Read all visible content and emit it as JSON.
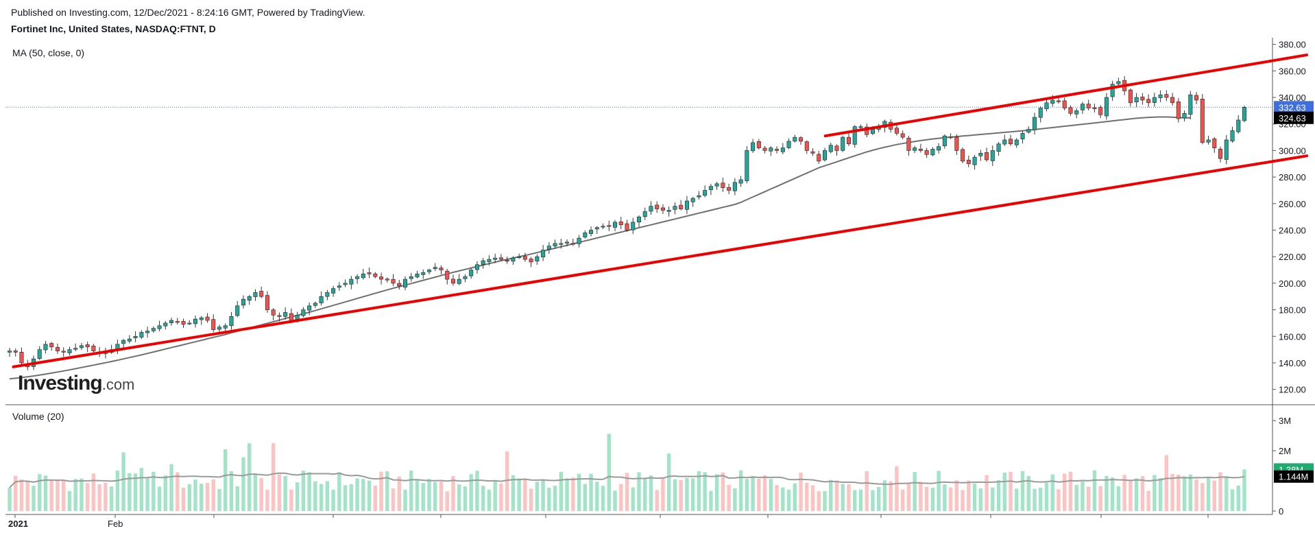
{
  "header": {
    "published": "Published on Investing.com, 12/Dec/2021 - 8:24:16 GMT, Powered by TradingView.",
    "title": "Fortinet Inc, United States, NASDAQ:FTNT, D"
  },
  "legends": {
    "ma": "MA (50, close, 0)",
    "volume": "Volume (20)"
  },
  "logo": {
    "brand": "Investing",
    "suffix": ".com"
  },
  "colors": {
    "up": "#26a69a",
    "down": "#ef5350",
    "up_vol": "#a3e4c9",
    "down_vol": "#fbc4c2",
    "ma": "#6f6f6f",
    "trend": "#ee0000",
    "last_price": "#3f6fdd",
    "ma_label": "#000000"
  },
  "chart_data": [
    {
      "type": "candlestick",
      "ylim": [
        110,
        385
      ],
      "ytick_labels": [
        "120.00",
        "140.00",
        "160.00",
        "180.00",
        "200.00",
        "220.00",
        "240.00",
        "260.00",
        "280.00",
        "300.00",
        "320.00",
        "340.00",
        "360.00",
        "380.00"
      ],
      "xtick_labels": [
        "2021",
        "Feb"
      ],
      "last_price": 332.63,
      "last_price_label": "332.63",
      "ma_value": 324.63,
      "ma_label": "324.63",
      "closes": [
        149,
        148,
        140,
        137,
        143,
        150,
        154,
        152,
        149,
        148,
        150,
        151,
        153,
        152,
        149,
        148,
        147,
        150,
        154,
        157,
        158,
        160,
        163,
        164,
        166,
        168,
        170,
        172,
        171,
        169,
        170,
        173,
        174,
        172,
        165,
        167,
        168,
        175,
        183,
        188,
        190,
        193,
        190,
        180,
        176,
        175,
        178,
        172,
        176,
        180,
        183,
        185,
        190,
        193,
        196,
        198,
        200,
        203,
        205,
        207,
        207,
        205,
        203,
        203,
        200,
        198,
        203,
        205,
        207,
        208,
        210,
        212,
        210,
        203,
        200,
        203,
        205,
        210,
        214,
        217,
        218,
        219,
        218,
        217,
        219,
        220,
        218,
        216,
        220,
        225,
        228,
        230,
        230,
        231,
        230,
        234,
        238,
        240,
        242,
        243,
        243,
        246,
        244,
        240,
        246,
        250,
        254,
        258,
        256,
        255,
        255,
        258,
        256,
        262,
        264,
        266,
        270,
        273,
        275,
        272,
        270,
        276,
        278,
        300,
        306,
        302,
        300,
        302,
        300,
        302,
        307,
        310,
        307,
        300,
        298,
        292,
        300,
        304,
        300,
        310,
        305,
        318,
        318,
        312,
        316,
        318,
        322,
        316,
        313,
        310,
        300,
        302,
        300,
        297,
        301,
        303,
        311,
        310,
        300,
        292,
        290,
        295,
        298,
        293,
        300,
        305,
        308,
        305,
        308,
        313,
        316,
        325,
        332,
        336,
        338,
        337,
        332,
        328,
        330,
        335,
        332,
        332,
        327,
        340,
        350,
        352,
        345,
        336,
        340,
        338,
        336,
        340,
        342,
        340,
        336,
        324,
        328,
        342,
        338,
        306,
        308,
        302,
        294,
        308,
        315,
        323,
        332.63
      ],
      "ma50": [
        128,
        128.4,
        128.9,
        129.5,
        130.1,
        130.8,
        131.5,
        132.3,
        133.1,
        133.9,
        134.7,
        135.6,
        136.5,
        137.4,
        138.3,
        139.2,
        140.1,
        141,
        142,
        143,
        144,
        145,
        146,
        147.1,
        148.2,
        149.3,
        150.4,
        151.5,
        152.6,
        153.7,
        154.8,
        155.9,
        157,
        158.1,
        159.2,
        160.3,
        161.4,
        162.6,
        163.8,
        165,
        166.2,
        167.4,
        168.6,
        169.8,
        171,
        172.2,
        173.4,
        174.6,
        175.8,
        177,
        178.2,
        179.4,
        180.7,
        182,
        183.3,
        184.6,
        185.9,
        187.2,
        188.5,
        189.8,
        191.1,
        192.4,
        193.7,
        195,
        196.2,
        197.4,
        198.6,
        199.8,
        201,
        202.2,
        203.4,
        204.6,
        205.8,
        207,
        208.2,
        209.3,
        210.4,
        211.5,
        212.6,
        213.7,
        214.8,
        215.9,
        217,
        218,
        219,
        220,
        221,
        222,
        223.1,
        224.2,
        225.3,
        226.4,
        227.5,
        228.6,
        229.7,
        230.8,
        231.9,
        233,
        234.1,
        235.2,
        236.3,
        237.4,
        238.5,
        239.6,
        240.7,
        241.8,
        242.9,
        244,
        245.1,
        246.2,
        247.3,
        248.4,
        249.5,
        250.6,
        251.7,
        252.8,
        253.9,
        255,
        256.1,
        257.2,
        258.3,
        259.4,
        261,
        263,
        265,
        267,
        269,
        271,
        273,
        275,
        277,
        279,
        281,
        283,
        285,
        287,
        288.5,
        290,
        291.5,
        293,
        294.5,
        296,
        297.5,
        299,
        300.2,
        301.4,
        302.5,
        303.5,
        304.5,
        305.3,
        306.1,
        306.8,
        307.5,
        308.1,
        308.7,
        309.2,
        309.7,
        310.1,
        310.5,
        310.9,
        311.3,
        311.7,
        312.1,
        312.5,
        312.9,
        313.3,
        313.7,
        314.1,
        314.5,
        314.9,
        315.3,
        315.8,
        316.3,
        316.8,
        317.3,
        317.8,
        318.3,
        318.8,
        319.3,
        319.8,
        320.3,
        320.8,
        321.3,
        321.8,
        322.3,
        322.8,
        323.3,
        323.8,
        324.3,
        324.7,
        325,
        325.2,
        325.3,
        325.3,
        325.1,
        324.9,
        324.7,
        324.63
      ],
      "trend_lines": [
        {
          "from": [
            "2021-01-05",
            137
          ],
          "to": [
            "2021-12-10",
            296
          ]
        },
        {
          "from": [
            "2021-08-09",
            311
          ],
          "to": [
            "2021-12-10",
            372
          ]
        }
      ]
    },
    {
      "type": "bar",
      "title": "Volume (20)",
      "units": "M",
      "ylim": [
        0,
        3.3
      ],
      "ytick_labels": [
        "3M",
        "2M",
        "0"
      ],
      "last_volume": 1.38,
      "last_volume_label": "1.38M",
      "volume_ma_value": 1.144,
      "volume_ma_label": "1.144M"
    }
  ]
}
